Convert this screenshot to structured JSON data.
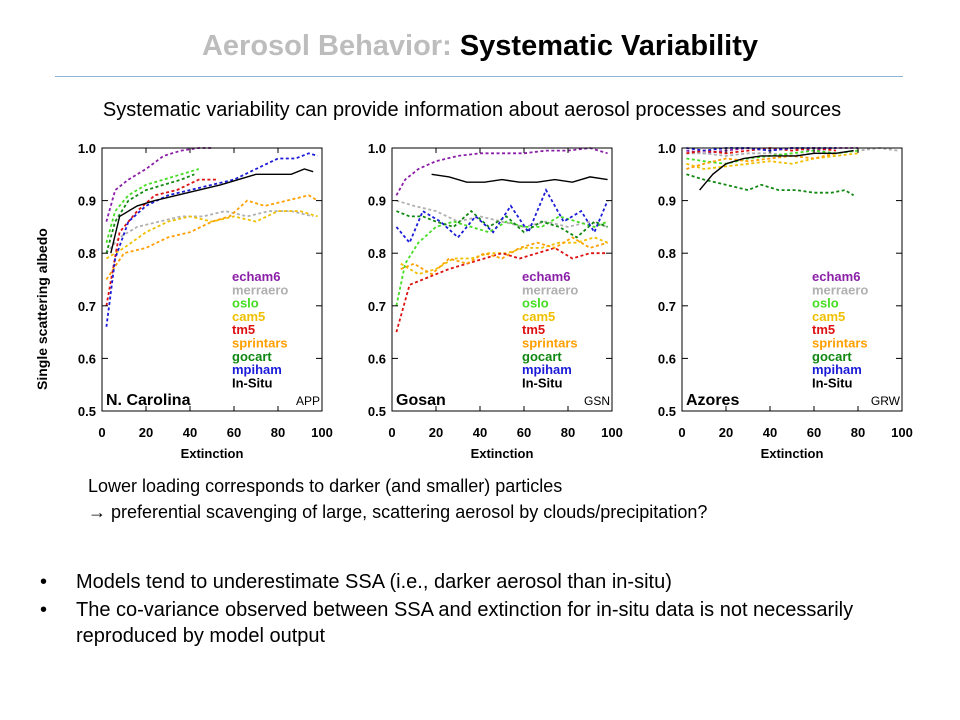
{
  "slide": {
    "title_prefix": "Aerosol Behavior: ",
    "title_main": "Systematic Variability",
    "subtitle": "Systematic variability can provide information about aerosol processes and sources",
    "note_line1": "Lower loading corresponds to darker (and smaller) particles",
    "note_line2": "→ preferential scavenging of large, scattering aerosol by clouds/precipitation?",
    "bullets": [
      "Models tend to underestimate SSA (i.e., darker aerosol than in-situ)",
      "The co-variance observed between SSA and extinction for in-situ data is not necessarily reproduced by model output"
    ],
    "bullet_char": "•"
  },
  "chart_data": {
    "type": "line",
    "ylabel": "Single scattering albedo",
    "xlabel": "Extinction",
    "xlim": [
      0,
      100
    ],
    "ylim": [
      0.5,
      1.0
    ],
    "xticks": [
      0,
      20,
      40,
      60,
      80,
      100
    ],
    "yticks": [
      "0.5",
      "0.6",
      "0.7",
      "0.8",
      "0.9",
      "1.0"
    ],
    "legend": [
      {
        "name": "echam6",
        "color": "#8b1fa8"
      },
      {
        "name": "merraero",
        "color": "#b0b0b0"
      },
      {
        "name": "oslo",
        "color": "#44dd22"
      },
      {
        "name": "cam5",
        "color": "#f0c000"
      },
      {
        "name": "tm5",
        "color": "#dd1111"
      },
      {
        "name": "sprintars",
        "color": "#ff9f00"
      },
      {
        "name": "gocart",
        "color": "#118811"
      },
      {
        "name": "mpiham",
        "color": "#1a1ad8"
      },
      {
        "name": "In-Situ",
        "color": "#000000"
      }
    ],
    "panels": [
      {
        "site": "N. Carolina",
        "code": "APP",
        "series": [
          {
            "name": "echam6",
            "x": [
              2,
              6,
              12,
              20,
              28,
              36,
              44,
              50
            ],
            "y": [
              0.86,
              0.92,
              0.94,
              0.96,
              0.985,
              0.995,
              1.0,
              1.0
            ]
          },
          {
            "name": "merraero",
            "x": [
              2,
              8,
              16,
              26,
              36,
              46,
              56,
              66,
              76,
              86,
              96
            ],
            "y": [
              0.8,
              0.83,
              0.85,
              0.86,
              0.87,
              0.87,
              0.88,
              0.87,
              0.88,
              0.88,
              0.87
            ]
          },
          {
            "name": "oslo",
            "x": [
              2,
              6,
              12,
              20,
              28,
              36,
              44
            ],
            "y": [
              0.82,
              0.88,
              0.91,
              0.93,
              0.94,
              0.95,
              0.96
            ]
          },
          {
            "name": "cam5",
            "x": [
              2,
              10,
              20,
              30,
              40,
              50,
              60,
              70,
              80,
              90,
              98
            ],
            "y": [
              0.79,
              0.81,
              0.84,
              0.86,
              0.87,
              0.86,
              0.87,
              0.86,
              0.88,
              0.88,
              0.87
            ]
          },
          {
            "name": "tm5",
            "x": [
              2,
              8,
              16,
              24,
              34,
              44,
              52
            ],
            "y": [
              0.7,
              0.84,
              0.88,
              0.91,
              0.92,
              0.94,
              0.94
            ]
          },
          {
            "name": "sprintars",
            "x": [
              2,
              10,
              20,
              30,
              40,
              50,
              58,
              66,
              74,
              84,
              94,
              98
            ],
            "y": [
              0.75,
              0.8,
              0.81,
              0.83,
              0.84,
              0.86,
              0.87,
              0.9,
              0.89,
              0.9,
              0.91,
              0.9
            ]
          },
          {
            "name": "gocart",
            "x": [
              2,
              6,
              12,
              20,
              28,
              36,
              42
            ],
            "y": [
              0.8,
              0.86,
              0.9,
              0.92,
              0.93,
              0.94,
              0.95
            ]
          },
          {
            "name": "mpiham",
            "x": [
              2,
              6,
              12,
              20,
              30,
              40,
              50,
              60,
              70,
              80,
              88,
              94,
              98
            ],
            "y": [
              0.66,
              0.79,
              0.86,
              0.89,
              0.91,
              0.92,
              0.93,
              0.94,
              0.96,
              0.98,
              0.98,
              0.99,
              0.985
            ]
          },
          {
            "name": "In-Situ",
            "x": [
              4,
              8,
              16,
              24,
              34,
              44,
              54,
              62,
              70,
              78,
              86,
              92,
              96
            ],
            "y": [
              0.8,
              0.87,
              0.89,
              0.9,
              0.91,
              0.92,
              0.93,
              0.94,
              0.95,
              0.95,
              0.95,
              0.96,
              0.955
            ]
          }
        ]
      },
      {
        "site": "Gosan",
        "code": "GSN",
        "series": [
          {
            "name": "echam6",
            "x": [
              2,
              6,
              12,
              20,
              30,
              40,
              50,
              60,
              70,
              80,
              90,
              98
            ],
            "y": [
              0.91,
              0.94,
              0.96,
              0.975,
              0.985,
              0.99,
              0.99,
              0.99,
              0.995,
              0.995,
              1.0,
              0.99
            ]
          },
          {
            "name": "merraero",
            "x": [
              2,
              10,
              20,
              30,
              40,
              50,
              60,
              70,
              80,
              90,
              98
            ],
            "y": [
              0.9,
              0.89,
              0.88,
              0.86,
              0.87,
              0.86,
              0.85,
              0.86,
              0.85,
              0.86,
              0.85
            ]
          },
          {
            "name": "oslo",
            "x": [
              2,
              6,
              12,
              20,
              28,
              36,
              44,
              52,
              60,
              68,
              76,
              84,
              92,
              98
            ],
            "y": [
              0.7,
              0.78,
              0.82,
              0.85,
              0.86,
              0.85,
              0.84,
              0.86,
              0.85,
              0.85,
              0.87,
              0.86,
              0.85,
              0.86
            ]
          },
          {
            "name": "cam5",
            "x": [
              4,
              12,
              20,
              28,
              36,
              44,
              52,
              60,
              68,
              76,
              84,
              92,
              98
            ],
            "y": [
              0.78,
              0.76,
              0.77,
              0.79,
              0.79,
              0.8,
              0.8,
              0.81,
              0.81,
              0.82,
              0.82,
              0.83,
              0.82
            ]
          },
          {
            "name": "tm5",
            "x": [
              2,
              8,
              14,
              20,
              26,
              34,
              42,
              50,
              58,
              66,
              74,
              82,
              90,
              98
            ],
            "y": [
              0.65,
              0.74,
              0.75,
              0.76,
              0.77,
              0.78,
              0.79,
              0.8,
              0.79,
              0.8,
              0.81,
              0.79,
              0.8,
              0.8
            ]
          },
          {
            "name": "sprintars",
            "x": [
              4,
              10,
              18,
              26,
              34,
              42,
              50,
              58,
              66,
              74,
              82,
              90,
              98
            ],
            "y": [
              0.77,
              0.78,
              0.76,
              0.79,
              0.78,
              0.8,
              0.79,
              0.81,
              0.82,
              0.81,
              0.83,
              0.81,
              0.82
            ]
          },
          {
            "name": "gocart",
            "x": [
              2,
              8,
              14,
              20,
              28,
              36,
              44,
              52,
              60,
              68,
              76,
              84,
              92,
              98
            ],
            "y": [
              0.88,
              0.87,
              0.87,
              0.86,
              0.85,
              0.88,
              0.85,
              0.87,
              0.84,
              0.86,
              0.85,
              0.83,
              0.86,
              0.85
            ]
          },
          {
            "name": "mpiham",
            "x": [
              2,
              8,
              14,
              22,
              30,
              38,
              46,
              54,
              62,
              70,
              78,
              86,
              92,
              98
            ],
            "y": [
              0.85,
              0.82,
              0.88,
              0.86,
              0.83,
              0.87,
              0.84,
              0.89,
              0.84,
              0.92,
              0.86,
              0.88,
              0.84,
              0.9
            ]
          },
          {
            "name": "In-Situ",
            "x": [
              18,
              26,
              34,
              42,
              50,
              58,
              66,
              74,
              82,
              90,
              98
            ],
            "y": [
              0.95,
              0.945,
              0.935,
              0.935,
              0.94,
              0.935,
              0.935,
              0.94,
              0.935,
              0.945,
              0.94
            ]
          }
        ]
      },
      {
        "site": "Azores",
        "code": "GRW",
        "series": [
          {
            "name": "echam6",
            "x": [
              2,
              10,
              20,
              30,
              40,
              50,
              60,
              70,
              80
            ],
            "y": [
              0.995,
              0.99,
              0.995,
              1.0,
              0.995,
              1.0,
              0.995,
              1.0,
              1.0
            ]
          },
          {
            "name": "merraero",
            "x": [
              2,
              10,
              20,
              30,
              40,
              50,
              60,
              70,
              80,
              90,
              98
            ],
            "y": [
              0.99,
              0.99,
              0.985,
              0.99,
              0.99,
              0.985,
              0.99,
              0.99,
              0.995,
              1.0,
              0.995
            ]
          },
          {
            "name": "oslo",
            "x": [
              2,
              10,
              20,
              30,
              40,
              50,
              60,
              70,
              80
            ],
            "y": [
              0.98,
              0.975,
              0.97,
              0.98,
              0.985,
              0.99,
              0.995,
              0.99,
              0.995
            ]
          },
          {
            "name": "cam5",
            "x": [
              2,
              10,
              20,
              30,
              40,
              50,
              60,
              70,
              80
            ],
            "y": [
              0.97,
              0.96,
              0.965,
              0.97,
              0.975,
              0.97,
              0.98,
              0.985,
              0.99
            ]
          },
          {
            "name": "tm5",
            "x": [
              2,
              10,
              20,
              30,
              40,
              50,
              60,
              70
            ],
            "y": [
              0.99,
              0.995,
              0.99,
              0.995,
              1.0,
              0.995,
              1.0,
              0.995
            ]
          },
          {
            "name": "sprintars",
            "x": [
              2,
              10,
              20,
              30,
              40,
              50,
              60,
              70
            ],
            "y": [
              0.96,
              0.97,
              0.98,
              0.975,
              0.98,
              0.985,
              0.98,
              0.99
            ]
          },
          {
            "name": "gocart",
            "x": [
              2,
              10,
              20,
              30,
              36,
              44,
              52,
              60,
              68,
              74,
              78
            ],
            "y": [
              0.95,
              0.94,
              0.93,
              0.92,
              0.93,
              0.92,
              0.92,
              0.915,
              0.915,
              0.92,
              0.91
            ]
          },
          {
            "name": "mpiham",
            "x": [
              2,
              10,
              20,
              30,
              40,
              50,
              60,
              70
            ],
            "y": [
              1.0,
              0.995,
              1.0,
              1.0,
              0.995,
              1.0,
              1.0,
              1.0
            ]
          },
          {
            "name": "In-Situ",
            "x": [
              8,
              14,
              20,
              28,
              36,
              44,
              52,
              60,
              70,
              78
            ],
            "y": [
              0.92,
              0.95,
              0.97,
              0.98,
              0.985,
              0.985,
              0.985,
              0.99,
              0.99,
              0.995
            ]
          }
        ]
      }
    ]
  }
}
